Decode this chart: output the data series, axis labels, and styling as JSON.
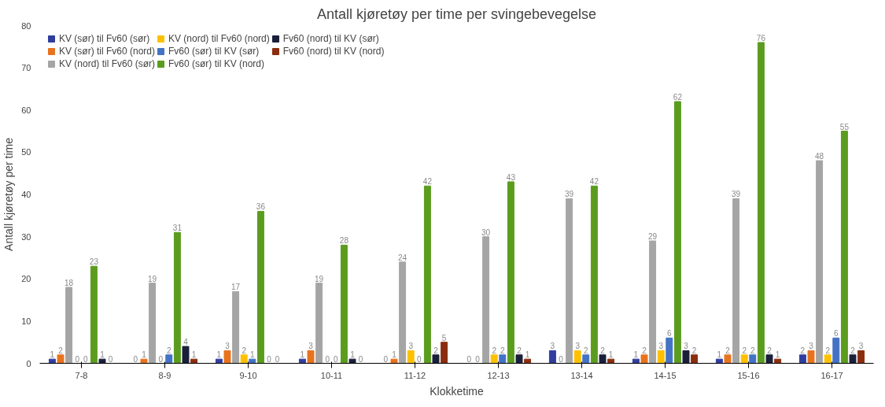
{
  "chart_data": {
    "type": "bar",
    "title": "Antall kjøretøy per time per svingebevegelse",
    "xlabel": "Klokketime",
    "ylabel": "Antall kjøretøy per time",
    "categories": [
      "7-8",
      "8-9",
      "9-10",
      "10-11",
      "11-12",
      "12-13",
      "13-14",
      "14-15",
      "15-16",
      "16-17"
    ],
    "series": [
      {
        "name": "KV (sør) til Fv60 (sør)",
        "color": "#2f3e9e",
        "values": [
          1,
          0,
          1,
          1,
          0,
          0,
          3,
          1,
          1,
          2
        ]
      },
      {
        "name": "KV (sør) til Fv60 (nord)",
        "color": "#e8731e",
        "values": [
          2,
          1,
          3,
          3,
          1,
          0,
          0,
          2,
          2,
          3
        ]
      },
      {
        "name": "KV (nord) til Fv60 (sør)",
        "color": "#a5a5a5",
        "values": [
          18,
          19,
          17,
          19,
          24,
          30,
          39,
          29,
          39,
          48
        ]
      },
      {
        "name": "KV (nord) til Fv60 (nord)",
        "color": "#ffc000",
        "values": [
          0,
          0,
          2,
          0,
          3,
          2,
          3,
          3,
          2,
          2
        ]
      },
      {
        "name": "Fv60 (sør) til KV (sør)",
        "color": "#4472c4",
        "values": [
          0,
          2,
          1,
          0,
          0,
          2,
          2,
          6,
          2,
          6
        ]
      },
      {
        "name": "Fv60 (sør) til KV (nord)",
        "color": "#5b9c1f",
        "values": [
          23,
          31,
          36,
          28,
          42,
          43,
          42,
          62,
          76,
          55
        ]
      },
      {
        "name": "Fv60 (nord) til KV (sør)",
        "color": "#1a1f3a",
        "values": [
          1,
          4,
          0,
          1,
          2,
          2,
          2,
          3,
          2,
          2
        ]
      },
      {
        "name": "Fv60 (nord) til KV (nord)",
        "color": "#8b2e0f",
        "values": [
          0,
          1,
          0,
          0,
          5,
          1,
          1,
          2,
          1,
          3
        ]
      }
    ],
    "ylim": [
      0,
      80
    ],
    "yticks": [
      0,
      10,
      20,
      30,
      40,
      50,
      60,
      70,
      80
    ],
    "data_labels": true,
    "grid": false,
    "legend": "top left"
  }
}
